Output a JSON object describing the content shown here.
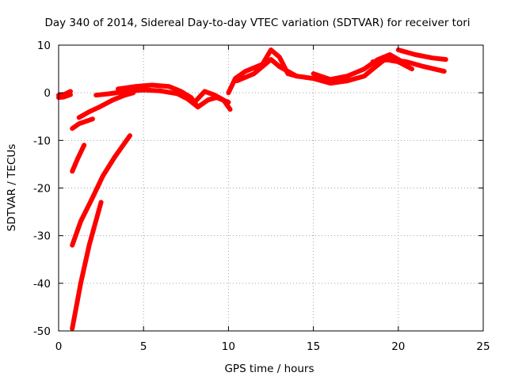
{
  "chart_data": {
    "type": "line",
    "title": "Day 340 of 2014, Sidereal Day-to-day VTEC variation (SDTVAR) for receiver tori",
    "xlabel": "GPS time / hours",
    "ylabel": "SDTVAR / TECUs",
    "xlim": [
      0,
      25
    ],
    "ylim": [
      -50,
      10
    ],
    "xticks": [
      0,
      5,
      10,
      15,
      20,
      25
    ],
    "yticks": [
      -50,
      -40,
      -30,
      -20,
      -10,
      0,
      10
    ],
    "xtick_labels": [
      "0",
      "5",
      "10",
      "15",
      "20",
      "25"
    ],
    "ytick_labels": [
      "-50",
      "-40",
      "-30",
      "-20",
      "-10",
      "0",
      "10"
    ],
    "grid": true,
    "legend": "none",
    "line_color": "#ff0000",
    "series": [
      {
        "x": [
          0.0,
          0.3,
          0.7
        ],
        "y": [
          -0.5,
          -0.4,
          0.3
        ]
      },
      {
        "x": [
          0.0,
          0.3,
          0.7
        ],
        "y": [
          -1.0,
          -0.9,
          -0.4
        ]
      },
      {
        "x": [
          0.8,
          1.2,
          2.0
        ],
        "y": [
          -7.5,
          -6.5,
          -5.5
        ]
      },
      {
        "x": [
          1.2,
          1.8,
          2.4,
          3.2,
          3.9,
          4.4
        ],
        "y": [
          -5.2,
          -4.0,
          -3.0,
          -1.5,
          -0.5,
          0.0
        ]
      },
      {
        "x": [
          0.8,
          1.1,
          1.5
        ],
        "y": [
          -16.5,
          -14.0,
          -11.0
        ]
      },
      {
        "x": [
          0.8,
          1.3,
          2.0,
          2.6,
          3.3,
          4.2
        ],
        "y": [
          -32.0,
          -27.0,
          -22.0,
          -17.5,
          -13.5,
          -9.0
        ]
      },
      {
        "x": [
          0.8,
          1.3,
          1.8,
          2.5
        ],
        "y": [
          -49.5,
          -40.0,
          -32.0,
          -23.0
        ]
      },
      {
        "x": [
          2.2,
          3.0,
          4.0,
          5.0,
          6.0,
          7.0,
          7.6,
          8.2,
          8.8,
          9.3,
          10.0
        ],
        "y": [
          -0.5,
          -0.2,
          0.3,
          0.6,
          0.4,
          -0.2,
          -1.3,
          -3.0,
          -1.5,
          -1.0,
          -2.0
        ]
      },
      {
        "x": [
          3.5,
          4.5,
          5.5,
          6.5,
          7.2,
          7.8,
          8.2
        ],
        "y": [
          0.8,
          1.3,
          1.6,
          1.3,
          0.3,
          -1.0,
          -3.0
        ]
      },
      {
        "x": [
          8.0,
          8.6,
          9.2,
          9.7,
          10.1
        ],
        "y": [
          -2.0,
          0.3,
          -0.5,
          -1.5,
          -3.5
        ]
      },
      {
        "x": [
          10.0,
          10.4,
          11.0,
          12.0,
          12.5,
          13.0,
          13.5,
          14.0
        ],
        "y": [
          0.0,
          3.0,
          4.5,
          6.0,
          9.0,
          7.5,
          4.0,
          3.5
        ]
      },
      {
        "x": [
          10.5,
          11.5,
          12.5,
          13.0,
          14.0,
          15.0,
          16.0,
          17.0,
          18.0,
          18.5,
          19.2,
          20.0,
          20.8
        ],
        "y": [
          2.5,
          4.0,
          7.0,
          5.5,
          3.5,
          3.0,
          2.0,
          2.5,
          3.5,
          5.0,
          7.0,
          6.5,
          5.0
        ]
      },
      {
        "x": [
          15.0,
          16.0,
          17.0,
          18.0,
          18.8,
          19.5,
          20.0,
          20.5
        ],
        "y": [
          4.0,
          2.8,
          3.5,
          5.0,
          7.0,
          8.0,
          7.0,
          6.0
        ]
      },
      {
        "x": [
          18.5,
          19.5,
          20.5,
          21.5,
          22.7
        ],
        "y": [
          6.5,
          7.0,
          6.5,
          5.5,
          4.5
        ]
      },
      {
        "x": [
          20.0,
          21.0,
          22.0,
          22.8
        ],
        "y": [
          9.0,
          8.0,
          7.3,
          7.0
        ]
      }
    ]
  }
}
